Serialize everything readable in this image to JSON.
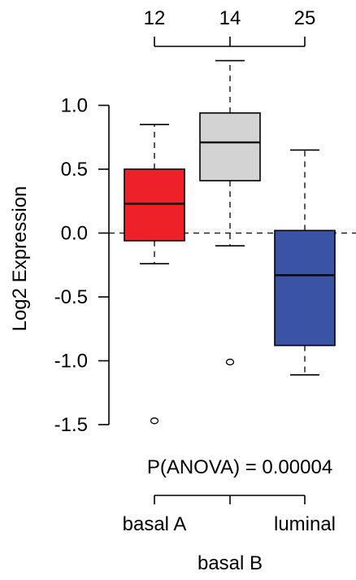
{
  "chart_data": {
    "type": "boxplot",
    "ylabel": "Log2 Expression",
    "ylim": [
      -1.5,
      1.0
    ],
    "yticks": [
      1.0,
      0.5,
      0.0,
      -0.5,
      -1.0,
      -1.5
    ],
    "ytick_labels": [
      "1.0",
      "0.5",
      "0.0",
      "-0.5",
      "-1.0",
      "-1.5"
    ],
    "reference_line": 0.0,
    "annotation": "P(ANOVA) = 0.00004",
    "groups": [
      {
        "name": "basal A",
        "n_label": "12",
        "color": "#ee2028",
        "whisker_low": -0.24,
        "q1": -0.06,
        "median": 0.23,
        "q3": 0.5,
        "whisker_high": 0.85,
        "outliers": [
          -1.47
        ]
      },
      {
        "name": "basal B",
        "n_label": "14",
        "color": "#d3d3d3",
        "whisker_low": -0.1,
        "q1": 0.41,
        "median": 0.71,
        "q3": 0.94,
        "whisker_high": 1.35,
        "outliers": [
          -1.01
        ]
      },
      {
        "name": "luminal",
        "n_label": "25",
        "color": "#3a53a4",
        "whisker_low": -1.11,
        "q1": -0.88,
        "median": -0.33,
        "q3": 0.02,
        "whisker_high": 0.65,
        "outliers": []
      }
    ]
  }
}
